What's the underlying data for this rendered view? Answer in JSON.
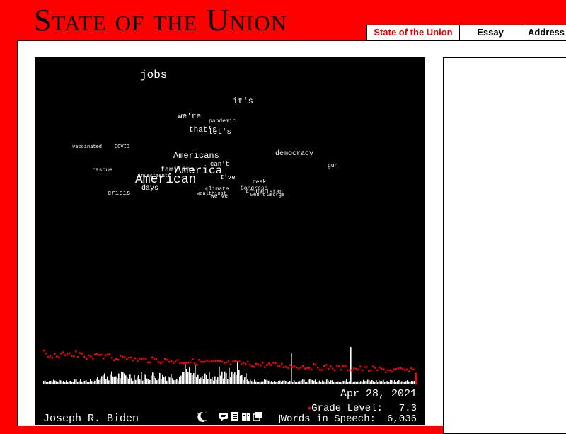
{
  "header": {
    "title": "State of the Union"
  },
  "tabs": [
    {
      "label": "State of the Union",
      "active": true
    },
    {
      "label": "Essay",
      "active": false
    },
    {
      "label": "Address",
      "active": false
    }
  ],
  "speech": {
    "date": "Apr 28, 2021",
    "speaker": "Joseph R. Biden",
    "grade_label": "Grade Level:",
    "grade_value": "7.3",
    "words_label": "Words in Speech:",
    "words_value": "6,036"
  },
  "word_cloud": [
    {
      "text": "jobs",
      "size": 16
    },
    {
      "text": "it's",
      "size": 12
    },
    {
      "text": "we're",
      "size": 11
    },
    {
      "text": "pandemic",
      "size": 8
    },
    {
      "text": "that's",
      "size": 11
    },
    {
      "text": "let's",
      "size": 11
    },
    {
      "text": "vaccinated",
      "size": 7
    },
    {
      "text": "COVID",
      "size": 7
    },
    {
      "text": "Americans",
      "size": 12
    },
    {
      "text": "democracy",
      "size": 10
    },
    {
      "text": "can't",
      "size": 9
    },
    {
      "text": "gun",
      "size": 8
    },
    {
      "text": "rescue",
      "size": 8
    },
    {
      "text": "families",
      "size": 10
    },
    {
      "text": "America",
      "size": 16
    },
    {
      "text": "investments",
      "size": 7
    },
    {
      "text": "American",
      "size": 18
    },
    {
      "text": "I've",
      "size": 9
    },
    {
      "text": "desk",
      "size": 8
    },
    {
      "text": "days",
      "size": 10
    },
    {
      "text": "crisis",
      "size": 9
    },
    {
      "text": "climate",
      "size": 8
    },
    {
      "text": "wealthiest",
      "size": 7
    },
    {
      "text": "we've",
      "size": 8
    },
    {
      "text": "Congress",
      "size": 8
    },
    {
      "text": "Afghanistan",
      "size": 8
    },
    {
      "text": "won't",
      "size": 7
    },
    {
      "text": "George",
      "size": 7
    }
  ],
  "icons": {
    "moon": "moon-icon",
    "group": [
      "speech-bubble-icon",
      "document-icon",
      "book-icon",
      "gallery-icon"
    ]
  },
  "colors": {
    "background": "#ff0000",
    "accent": "#ff0000",
    "panel": "#000000"
  }
}
